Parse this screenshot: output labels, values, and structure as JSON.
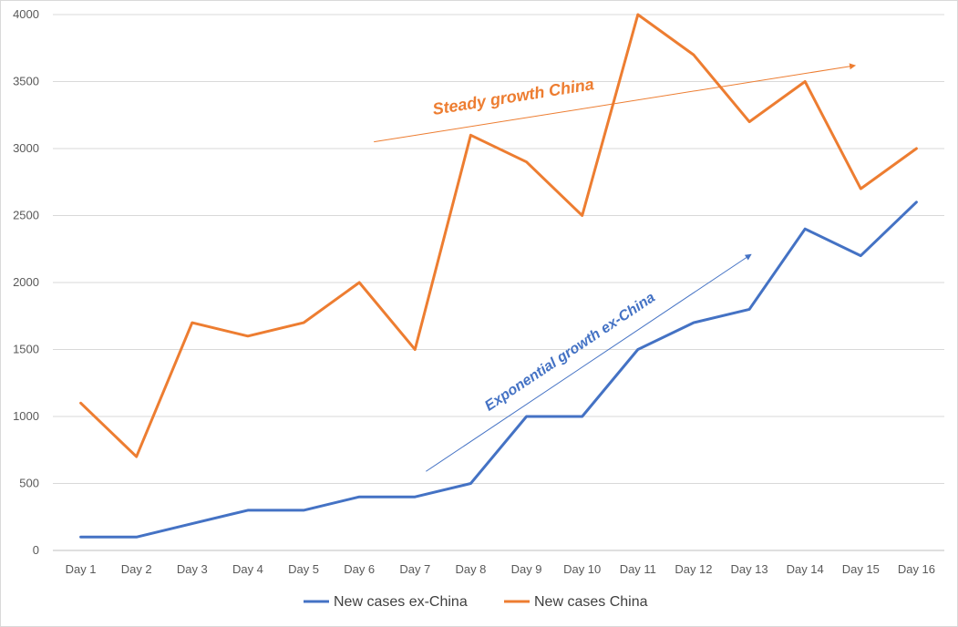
{
  "chart_data": {
    "type": "line",
    "categories": [
      "Day 1",
      "Day 2",
      "Day 3",
      "Day 4",
      "Day 5",
      "Day 6",
      "Day 7",
      "Day 8",
      "Day 9",
      "Day 10",
      "Day 11",
      "Day 12",
      "Day 13",
      "Day 14",
      "Day 15",
      "Day 16"
    ],
    "series": [
      {
        "name": "New cases ex-China",
        "color": "#4472C4",
        "values": [
          100,
          100,
          200,
          300,
          300,
          400,
          400,
          500,
          1000,
          1000,
          1500,
          1700,
          1800,
          2400,
          2200,
          2600
        ]
      },
      {
        "name": "New cases China",
        "color": "#ED7D31",
        "values": [
          1100,
          700,
          1700,
          1600,
          1700,
          2000,
          1500,
          3100,
          2900,
          2500,
          4000,
          3700,
          3200,
          3500,
          2700,
          3000
        ]
      }
    ],
    "yticks": [
      "0",
      "500",
      "1000",
      "1500",
      "2000",
      "2500",
      "3000",
      "3500",
      "4000"
    ],
    "ylim": [
      0,
      4000
    ],
    "grid": true,
    "legend_position": "bottom",
    "title": "",
    "xlabel": "",
    "ylabel": "",
    "annotations": [
      {
        "text": "Steady growth China",
        "color": "#ED7D31",
        "arrow_from": {
          "x": "Day 6",
          "y": 3050
        },
        "arrow_to": {
          "x": "Day 15",
          "y": 3620
        }
      },
      {
        "text": "Exponential growth ex-China",
        "color": "#4472C4",
        "arrow_from": {
          "x": "Day 7",
          "y": 590
        },
        "arrow_to": {
          "x": "Day 13",
          "y": 2210
        }
      }
    ]
  }
}
